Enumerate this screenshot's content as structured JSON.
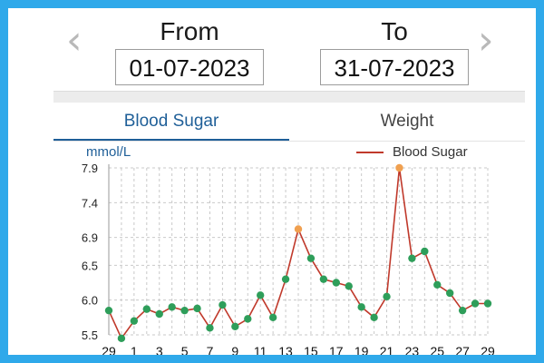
{
  "header": {
    "from_label": "From",
    "from_date": "01-07-2023",
    "to_label": "To",
    "to_date": "31-07-2023",
    "prev_icon": "chevron-left-icon",
    "next_icon": "chevron-right-icon"
  },
  "tabs": [
    {
      "label": "Blood Sugar",
      "active": true
    },
    {
      "label": "Weight",
      "active": false
    }
  ],
  "chart_data": {
    "type": "line",
    "ylabel": "mmol/L",
    "legend": "Blood Sugar",
    "legend_position": "top-right",
    "grid": true,
    "y_ticks": [
      7.9,
      7.4,
      6.9,
      6.5,
      6.0,
      5.5
    ],
    "ylim": [
      5.5,
      7.9
    ],
    "x_tick_labels": [
      "29",
      "1",
      "3",
      "5",
      "7",
      "9",
      "11",
      "13",
      "15",
      "17",
      "19",
      "21",
      "23",
      "25",
      "27",
      "29"
    ],
    "x": [
      0,
      1,
      2,
      3,
      4,
      5,
      6,
      7,
      8,
      9,
      10,
      11,
      12,
      13,
      14,
      15,
      16,
      17,
      18,
      19,
      20,
      21,
      22,
      23,
      24,
      25,
      26,
      27,
      28,
      29,
      30
    ],
    "series": [
      {
        "name": "Blood Sugar",
        "values": [
          5.85,
          5.45,
          5.7,
          5.87,
          5.8,
          5.9,
          5.85,
          5.88,
          5.6,
          5.93,
          5.62,
          5.73,
          6.07,
          5.75,
          6.3,
          7.02,
          6.6,
          6.3,
          6.25,
          6.2,
          5.9,
          5.75,
          6.05,
          7.9,
          6.6,
          6.7,
          6.22,
          6.1,
          5.85,
          5.95,
          5.95
        ],
        "highlight_indices": [
          15,
          23
        ]
      }
    ],
    "colors": {
      "line": "#c0392b",
      "point": "#2e9e5a",
      "highlight": "#f0a050"
    }
  },
  "colors": {
    "frame": "#2fa9ea",
    "accent": "#1f5f98"
  }
}
